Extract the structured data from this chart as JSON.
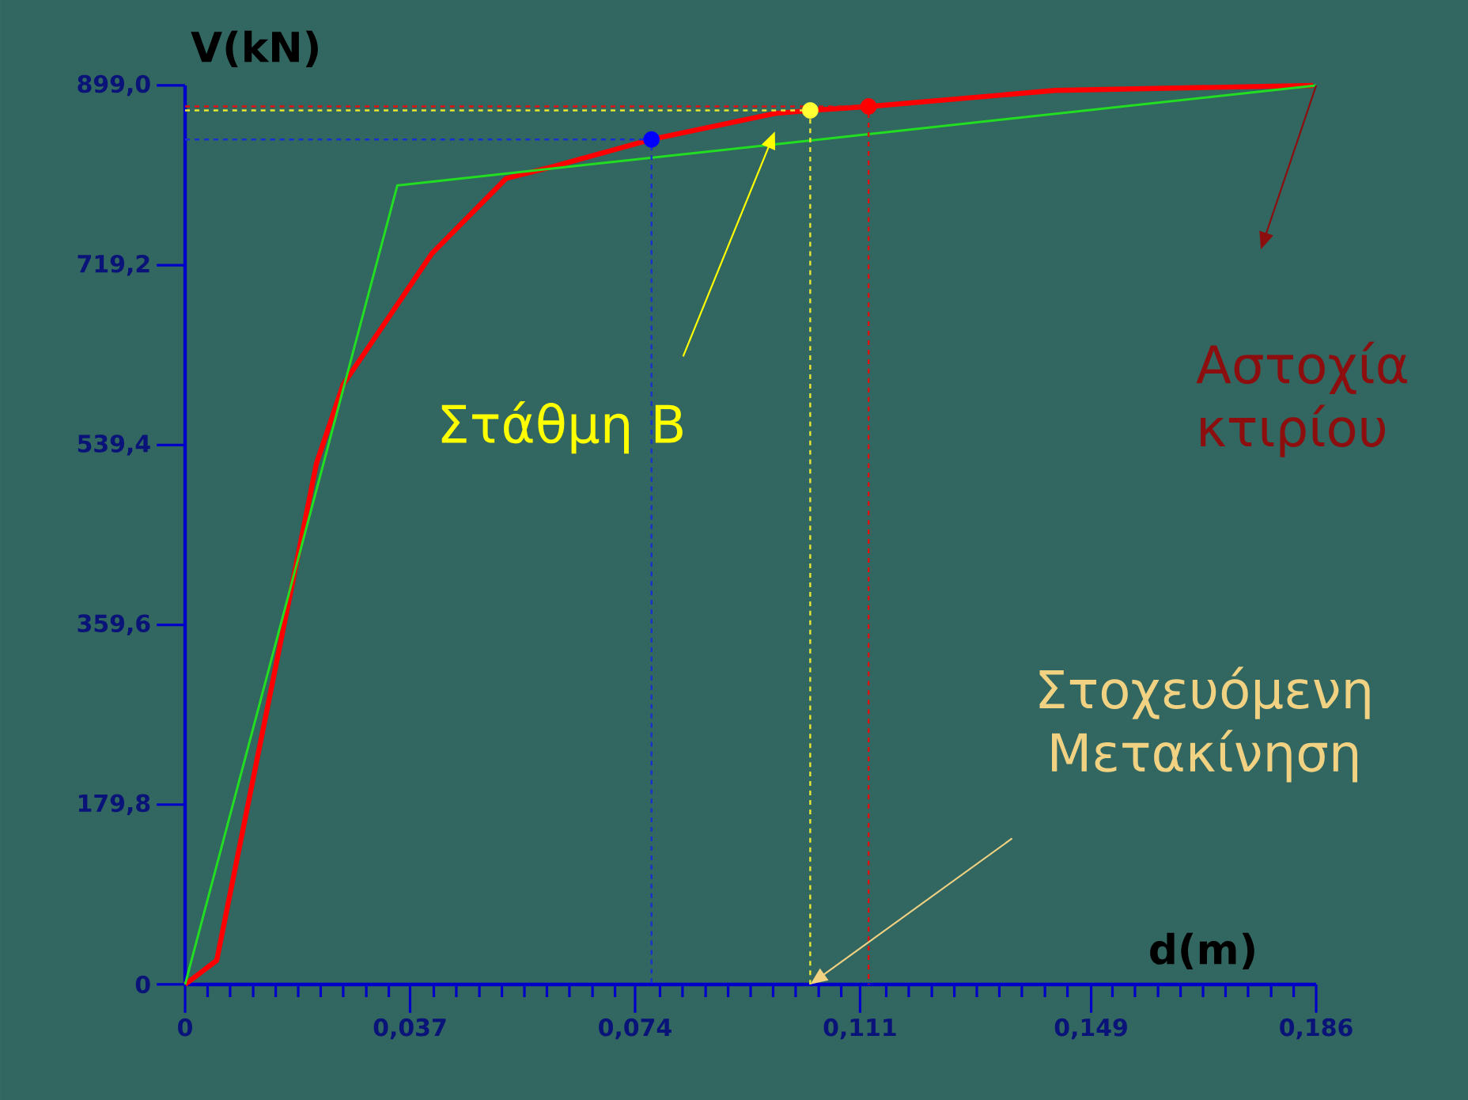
{
  "chart_data": {
    "type": "line",
    "xlabel": "d(m)",
    "ylabel": "V(kN)",
    "xlim": [
      0,
      0.186
    ],
    "ylim": [
      0,
      899
    ],
    "xticks": [
      0,
      {
        "value": 0.037,
        "label": "0,037"
      },
      {
        "value": 0.074,
        "label": "0,074"
      },
      {
        "value": 0.111,
        "label": "0,111"
      },
      {
        "value": 0.149,
        "label": "0,149"
      },
      {
        "value": 0.186,
        "label": "0,186"
      },
      {
        "value": 0.0037,
        "label": null
      },
      {
        "value": 0.0074,
        "label": null
      },
      {
        "value": 0.0112,
        "label": null
      },
      {
        "value": 0.0149,
        "label": null
      },
      {
        "value": 0.0186,
        "label": null
      },
      {
        "value": 0.0223,
        "label": null
      },
      {
        "value": 0.026,
        "label": null
      },
      {
        "value": 0.0298,
        "label": null
      },
      {
        "value": 0.0335,
        "label": null
      },
      {
        "value": 0.0409,
        "label": null
      },
      {
        "value": 0.0446,
        "label": null
      },
      {
        "value": 0.0484,
        "label": null
      },
      {
        "value": 0.0521,
        "label": null
      },
      {
        "value": 0.0558,
        "label": null
      },
      {
        "value": 0.0595,
        "label": null
      },
      {
        "value": 0.0632,
        "label": null
      },
      {
        "value": 0.067,
        "label": null
      },
      {
        "value": 0.0707,
        "label": null
      },
      {
        "value": 0.0781,
        "label": null
      },
      {
        "value": 0.0818,
        "label": null
      },
      {
        "value": 0.0856,
        "label": null
      },
      {
        "value": 0.0893,
        "label": null
      },
      {
        "value": 0.093,
        "label": null
      },
      {
        "value": 0.0967,
        "label": null
      },
      {
        "value": 0.1004,
        "label": null
      },
      {
        "value": 0.1042,
        "label": null
      },
      {
        "value": 0.1079,
        "label": null
      },
      {
        "value": 0.1153,
        "label": null
      },
      {
        "value": 0.119,
        "label": null
      },
      {
        "value": 0.1228,
        "label": null
      },
      {
        "value": 0.1265,
        "label": null
      },
      {
        "value": 0.1302,
        "label": null
      },
      {
        "value": 0.1339,
        "label": null
      },
      {
        "value": 0.1376,
        "label": null
      },
      {
        "value": 0.1414,
        "label": null
      },
      {
        "value": 0.1451,
        "label": null
      },
      {
        "value": 0.1525,
        "label": null
      },
      {
        "value": 0.1562,
        "label": null
      },
      {
        "value": 0.16,
        "label": null
      },
      {
        "value": 0.1637,
        "label": null
      },
      {
        "value": 0.1674,
        "label": null
      },
      {
        "value": 0.1711,
        "label": null
      },
      {
        "value": 0.1748,
        "label": null
      },
      {
        "value": 0.1786,
        "label": null
      },
      {
        "value": 0.1823,
        "label": null
      }
    ],
    "yticks": [
      0,
      {
        "value": 179.8,
        "label": "179,8"
      },
      {
        "value": 359.6,
        "label": "359,6"
      },
      {
        "value": 539.4,
        "label": "539,4"
      },
      {
        "value": 719.2,
        "label": "719,2"
      },
      {
        "value": 899,
        "label": "899,0"
      }
    ],
    "grid": false,
    "series": [
      {
        "color": "#ff0000",
        "x": [
          0,
          0.0052,
          0.0216,
          0.026,
          0.0406,
          0.0528,
          0.0606,
          0.0767,
          0.097,
          0.1028,
          0.1126,
          0.1431,
          0.1855
        ],
        "values": [
          0,
          24,
          521,
          600,
          731,
          806,
          818,
          845,
          871,
          874,
          878,
          894,
          899
        ]
      },
      {
        "color": "#22dd22",
        "x": [
          0,
          0.0349,
          0.186
        ],
        "values": [
          0,
          799,
          899
        ]
      },
      {
        "line_style": "dashed",
        "color": "#1a2fd0",
        "x": [
          0,
          0.0767,
          0.0767
        ],
        "values": [
          845,
          845,
          0
        ]
      },
      {
        "line_style": "dashed",
        "color": "#e8e830",
        "x": [
          0,
          0.1028,
          0.1028
        ],
        "values": [
          874,
          874,
          0
        ]
      },
      {
        "line_style": "dashed",
        "color": "#e01010",
        "x": [
          0,
          0.1124,
          0.1124
        ],
        "values": [
          878,
          878,
          0
        ]
      },
      {
        "type": "scatter",
        "color": "#0000ff",
        "x": [
          0.0767
        ],
        "values": [
          845
        ]
      },
      {
        "type": "scatter",
        "color": "#ffff33",
        "x": [
          0.1028
        ],
        "values": [
          874
        ]
      },
      {
        "type": "scatter",
        "color": "#ff0000",
        "x": [
          0.1124
        ],
        "values": [
          878
        ]
      }
    ],
    "annotations": [
      "Στάθμη Β",
      "Αστοχία κτιρίου",
      "Στοχευόμενη Μετακίνηση"
    ]
  }
}
